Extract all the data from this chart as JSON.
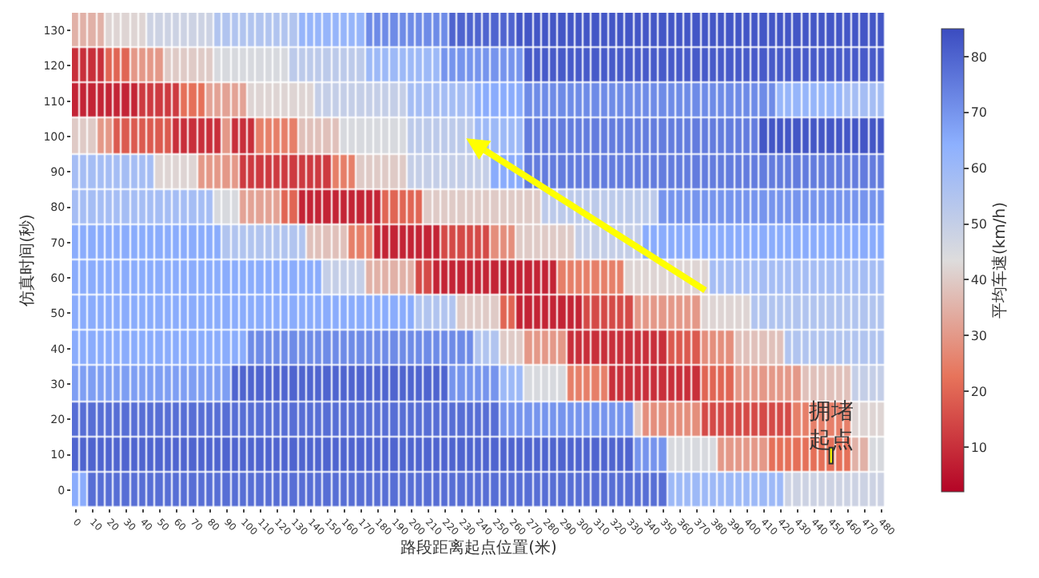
{
  "chart_data": {
    "type": "heatmap",
    "xlabel": "路段距离起点位置(米)",
    "ylabel": "仿真时间(秒)",
    "clabel": "平均车速(km/h)",
    "categories": [
      "0",
      null,
      "10",
      null,
      "20",
      null,
      "30",
      null,
      "40",
      null,
      "50",
      null,
      "60",
      null,
      "70",
      null,
      "80",
      null,
      "90",
      null,
      "100",
      null,
      "110",
      null,
      "120",
      null,
      "130",
      null,
      "140",
      null,
      "150",
      null,
      "160",
      null,
      "170",
      null,
      "180",
      null,
      "190",
      null,
      "200",
      null,
      "210",
      null,
      "220",
      null,
      "230",
      null,
      "240",
      null,
      "250",
      null,
      "260",
      null,
      "270",
      null,
      "280",
      null,
      "290",
      null,
      "300",
      null,
      "310",
      null,
      "320",
      null,
      "330",
      null,
      "340",
      null,
      "350",
      null,
      "360",
      null,
      "370",
      null,
      "380",
      null,
      "390",
      null,
      "400",
      null,
      "410",
      null,
      "420",
      null,
      "430",
      null,
      "440",
      null,
      "450",
      null,
      "460",
      null,
      "470",
      null,
      "480"
    ],
    "y_categories": [
      "130",
      "120",
      "110",
      "100",
      "90",
      "80",
      "70",
      "60",
      "50",
      "40",
      "30",
      "20",
      "10",
      "0"
    ],
    "cells": [
      [
        35,
        35,
        35,
        35,
        42,
        42,
        42,
        42,
        42,
        48,
        48,
        48,
        48,
        48,
        48,
        48,
        48,
        55,
        55,
        55,
        55,
        55,
        55,
        55,
        55,
        55,
        55,
        62,
        62,
        62,
        62,
        62,
        62,
        62,
        62,
        72,
        72,
        72,
        72,
        72,
        72,
        72,
        72,
        72,
        72,
        80,
        80,
        80,
        80,
        80,
        80,
        80,
        80,
        83,
        83,
        83,
        83,
        83,
        83,
        83,
        83,
        83,
        83,
        83,
        83,
        83,
        83,
        83,
        83,
        83,
        83,
        83,
        83,
        83,
        83,
        83,
        83,
        83,
        83,
        83,
        83,
        83,
        83,
        83,
        83,
        83,
        83,
        83,
        83,
        83,
        83,
        83,
        83,
        83,
        83,
        83,
        83
      ],
      [
        10,
        10,
        10,
        10,
        20,
        20,
        20,
        30,
        30,
        30,
        30,
        40,
        40,
        40,
        40,
        40,
        40,
        45,
        45,
        45,
        45,
        45,
        45,
        45,
        45,
        45,
        52,
        52,
        52,
        52,
        52,
        52,
        52,
        52,
        52,
        60,
        60,
        60,
        60,
        60,
        60,
        60,
        60,
        60,
        70,
        70,
        70,
        70,
        70,
        70,
        70,
        70,
        70,
        70,
        82,
        82,
        82,
        82,
        82,
        82,
        82,
        82,
        82,
        82,
        82,
        82,
        82,
        82,
        82,
        82,
        82,
        82,
        82,
        82,
        82,
        82,
        82,
        82,
        82,
        82,
        82,
        82,
        82,
        82,
        82,
        82,
        82,
        82,
        82,
        82,
        82,
        82,
        82,
        82,
        82,
        82,
        82
      ],
      [
        8,
        8,
        8,
        8,
        8,
        8,
        8,
        8,
        12,
        12,
        12,
        12,
        12,
        22,
        22,
        22,
        32,
        32,
        32,
        32,
        32,
        42,
        42,
        42,
        42,
        42,
        42,
        42,
        42,
        50,
        50,
        50,
        50,
        50,
        50,
        50,
        50,
        50,
        50,
        50,
        58,
        58,
        58,
        58,
        58,
        58,
        58,
        58,
        65,
        65,
        65,
        65,
        65,
        65,
        72,
        72,
        72,
        72,
        72,
        72,
        72,
        72,
        72,
        72,
        72,
        72,
        72,
        72,
        72,
        72,
        72,
        72,
        72,
        72,
        72,
        72,
        72,
        72,
        72,
        72,
        72,
        72,
        72,
        72,
        62,
        62,
        62,
        62,
        62,
        62,
        62,
        62,
        58,
        58,
        58,
        58,
        58
      ],
      [
        40,
        40,
        40,
        30,
        30,
        18,
        18,
        18,
        18,
        18,
        18,
        18,
        10,
        10,
        10,
        10,
        10,
        10,
        30,
        10,
        10,
        10,
        25,
        25,
        25,
        25,
        25,
        38,
        38,
        38,
        38,
        38,
        45,
        45,
        45,
        45,
        45,
        45,
        45,
        45,
        52,
        52,
        52,
        52,
        52,
        52,
        52,
        52,
        60,
        60,
        60,
        60,
        60,
        60,
        75,
        75,
        75,
        75,
        75,
        75,
        75,
        75,
        75,
        75,
        75,
        75,
        75,
        75,
        75,
        75,
        75,
        75,
        75,
        75,
        75,
        75,
        75,
        75,
        75,
        75,
        75,
        75,
        83,
        83,
        83,
        83,
        83,
        83,
        83,
        83,
        83,
        83,
        83,
        83,
        83,
        83,
        83
      ],
      [
        58,
        58,
        58,
        58,
        58,
        58,
        58,
        58,
        58,
        58,
        42,
        42,
        42,
        42,
        42,
        30,
        30,
        30,
        30,
        30,
        12,
        12,
        12,
        12,
        12,
        12,
        12,
        12,
        12,
        12,
        12,
        25,
        25,
        25,
        40,
        40,
        40,
        40,
        40,
        40,
        50,
        50,
        50,
        50,
        50,
        50,
        50,
        50,
        50,
        50,
        65,
        65,
        65,
        65,
        75,
        75,
        75,
        75,
        75,
        75,
        75,
        75,
        75,
        75,
        75,
        75,
        75,
        75,
        75,
        75,
        75,
        75,
        75,
        75,
        75,
        75,
        75,
        75,
        75,
        75,
        75,
        75,
        75,
        75,
        75,
        75,
        75,
        75,
        75,
        75,
        75,
        75,
        75,
        75,
        75,
        75,
        75
      ],
      [
        58,
        58,
        58,
        58,
        58,
        58,
        58,
        58,
        58,
        58,
        58,
        58,
        58,
        58,
        58,
        58,
        58,
        45,
        45,
        45,
        32,
        32,
        32,
        32,
        32,
        20,
        20,
        8,
        8,
        8,
        8,
        8,
        8,
        8,
        8,
        8,
        8,
        20,
        20,
        20,
        20,
        20,
        40,
        40,
        40,
        40,
        40,
        40,
        40,
        40,
        40,
        40,
        40,
        40,
        40,
        40,
        52,
        52,
        52,
        52,
        52,
        52,
        52,
        52,
        52,
        52,
        52,
        52,
        52,
        52,
        70,
        70,
        70,
        70,
        70,
        70,
        70,
        70,
        70,
        70,
        70,
        70,
        70,
        70,
        70,
        70,
        70,
        70,
        70,
        70,
        70,
        70,
        70,
        70,
        70,
        70,
        70
      ],
      [
        65,
        65,
        65,
        65,
        65,
        65,
        65,
        65,
        65,
        65,
        65,
        65,
        65,
        65,
        65,
        65,
        65,
        65,
        55,
        55,
        55,
        55,
        55,
        55,
        55,
        55,
        55,
        55,
        38,
        38,
        38,
        38,
        38,
        25,
        25,
        25,
        8,
        8,
        8,
        8,
        8,
        8,
        8,
        8,
        15,
        15,
        15,
        15,
        15,
        15,
        28,
        28,
        28,
        40,
        40,
        40,
        40,
        40,
        40,
        40,
        50,
        50,
        50,
        50,
        50,
        50,
        50,
        50,
        65,
        65,
        65,
        65,
        65,
        65,
        65,
        65,
        65,
        65,
        65,
        65,
        65,
        65,
        65,
        65,
        65,
        65,
        65,
        65,
        65,
        65,
        65,
        65,
        65,
        65,
        65,
        65,
        65
      ],
      [
        65,
        65,
        65,
        65,
        65,
        65,
        65,
        65,
        65,
        65,
        65,
        65,
        65,
        65,
        65,
        65,
        65,
        65,
        65,
        65,
        65,
        65,
        65,
        65,
        65,
        65,
        65,
        65,
        65,
        65,
        50,
        50,
        50,
        50,
        50,
        35,
        35,
        35,
        35,
        35,
        35,
        15,
        15,
        8,
        8,
        8,
        8,
        8,
        8,
        8,
        8,
        8,
        8,
        8,
        8,
        8,
        8,
        8,
        25,
        25,
        25,
        25,
        25,
        25,
        25,
        25,
        42,
        42,
        42,
        42,
        42,
        42,
        42,
        42,
        42,
        42,
        58,
        58,
        58,
        58,
        58,
        58,
        58,
        58,
        58,
        58,
        58,
        58,
        58,
        58,
        58,
        58,
        58,
        58,
        58,
        58,
        58
      ],
      [
        65,
        65,
        65,
        65,
        65,
        65,
        65,
        65,
        65,
        65,
        65,
        65,
        65,
        65,
        65,
        65,
        65,
        65,
        65,
        65,
        65,
        65,
        65,
        65,
        65,
        65,
        65,
        65,
        65,
        65,
        65,
        65,
        65,
        65,
        65,
        65,
        65,
        65,
        65,
        65,
        65,
        55,
        55,
        55,
        55,
        55,
        40,
        40,
        40,
        40,
        40,
        20,
        20,
        8,
        8,
        8,
        8,
        8,
        8,
        8,
        8,
        15,
        15,
        15,
        15,
        15,
        15,
        30,
        30,
        30,
        30,
        30,
        30,
        30,
        30,
        42,
        42,
        42,
        42,
        42,
        42,
        55,
        55,
        55,
        55,
        55,
        55,
        55,
        55,
        55,
        55,
        55,
        55,
        55,
        55,
        55,
        55
      ],
      [
        65,
        65,
        65,
        65,
        65,
        65,
        65,
        65,
        65,
        65,
        65,
        65,
        65,
        65,
        65,
        65,
        65,
        65,
        65,
        65,
        65,
        72,
        72,
        72,
        72,
        72,
        72,
        72,
        72,
        72,
        72,
        72,
        72,
        72,
        72,
        72,
        72,
        72,
        72,
        72,
        72,
        72,
        72,
        72,
        72,
        72,
        72,
        72,
        55,
        55,
        55,
        40,
        40,
        40,
        30,
        30,
        30,
        30,
        30,
        10,
        10,
        10,
        10,
        10,
        10,
        10,
        10,
        10,
        10,
        10,
        10,
        18,
        18,
        18,
        18,
        28,
        28,
        28,
        28,
        38,
        38,
        38,
        38,
        38,
        38,
        55,
        55,
        55,
        55,
        55,
        55,
        55,
        55,
        55,
        55,
        55,
        55
      ],
      [
        68,
        68,
        68,
        68,
        68,
        68,
        68,
        68,
        68,
        68,
        68,
        68,
        68,
        68,
        68,
        68,
        68,
        68,
        68,
        80,
        80,
        80,
        80,
        80,
        80,
        80,
        80,
        80,
        80,
        80,
        80,
        80,
        80,
        80,
        80,
        80,
        80,
        80,
        80,
        80,
        80,
        80,
        80,
        80,
        80,
        70,
        70,
        70,
        70,
        70,
        70,
        60,
        60,
        60,
        45,
        45,
        45,
        45,
        45,
        25,
        25,
        25,
        25,
        25,
        10,
        10,
        10,
        10,
        10,
        10,
        10,
        10,
        10,
        10,
        10,
        20,
        20,
        20,
        20,
        30,
        30,
        30,
        30,
        30,
        30,
        30,
        30,
        38,
        38,
        38,
        38,
        38,
        38,
        50,
        50,
        50,
        50
      ],
      [
        78,
        78,
        78,
        78,
        78,
        78,
        78,
        78,
        78,
        78,
        78,
        78,
        78,
        78,
        78,
        78,
        78,
        78,
        78,
        78,
        78,
        78,
        78,
        78,
        78,
        78,
        78,
        78,
        78,
        78,
        78,
        78,
        78,
        78,
        78,
        78,
        78,
        78,
        78,
        78,
        78,
        78,
        78,
        78,
        78,
        78,
        78,
        78,
        78,
        78,
        78,
        70,
        70,
        70,
        70,
        70,
        70,
        70,
        70,
        70,
        70,
        70,
        70,
        70,
        70,
        70,
        70,
        40,
        28,
        28,
        28,
        28,
        28,
        28,
        28,
        15,
        15,
        15,
        15,
        15,
        15,
        15,
        15,
        15,
        15,
        15,
        25,
        25,
        25,
        25,
        25,
        25,
        25,
        42,
        42,
        42,
        42
      ],
      [
        80,
        80,
        80,
        80,
        80,
        80,
        80,
        80,
        80,
        80,
        80,
        80,
        80,
        80,
        80,
        80,
        80,
        80,
        80,
        80,
        80,
        80,
        80,
        80,
        80,
        80,
        80,
        80,
        80,
        80,
        80,
        80,
        80,
        80,
        80,
        80,
        80,
        80,
        80,
        80,
        80,
        80,
        80,
        80,
        80,
        80,
        80,
        80,
        80,
        80,
        80,
        80,
        80,
        80,
        80,
        80,
        80,
        80,
        80,
        80,
        80,
        80,
        80,
        80,
        80,
        80,
        80,
        70,
        70,
        70,
        70,
        45,
        45,
        45,
        45,
        45,
        45,
        30,
        30,
        30,
        30,
        30,
        30,
        22,
        22,
        22,
        22,
        22,
        22,
        22,
        22,
        22,
        22,
        35,
        35,
        45,
        45
      ],
      [
        65,
        65,
        78,
        78,
        78,
        78,
        78,
        78,
        78,
        78,
        78,
        78,
        78,
        78,
        78,
        78,
        78,
        78,
        78,
        78,
        78,
        78,
        78,
        78,
        78,
        78,
        78,
        78,
        78,
        78,
        78,
        78,
        78,
        78,
        78,
        78,
        78,
        78,
        78,
        78,
        78,
        78,
        78,
        78,
        78,
        78,
        78,
        78,
        78,
        78,
        78,
        78,
        78,
        78,
        78,
        78,
        78,
        78,
        78,
        78,
        78,
        78,
        78,
        78,
        78,
        78,
        78,
        78,
        78,
        78,
        78,
        60,
        60,
        60,
        60,
        60,
        60,
        60,
        60,
        60,
        60,
        60,
        60,
        60,
        60,
        48,
        48,
        48,
        48,
        48,
        48,
        48,
        48,
        48,
        48,
        48,
        48
      ]
    ],
    "clim": [
      2,
      85
    ],
    "cticks": [
      10,
      20,
      30,
      40,
      50,
      60,
      70,
      80
    ],
    "annotations": [
      "拥堵起点"
    ]
  }
}
